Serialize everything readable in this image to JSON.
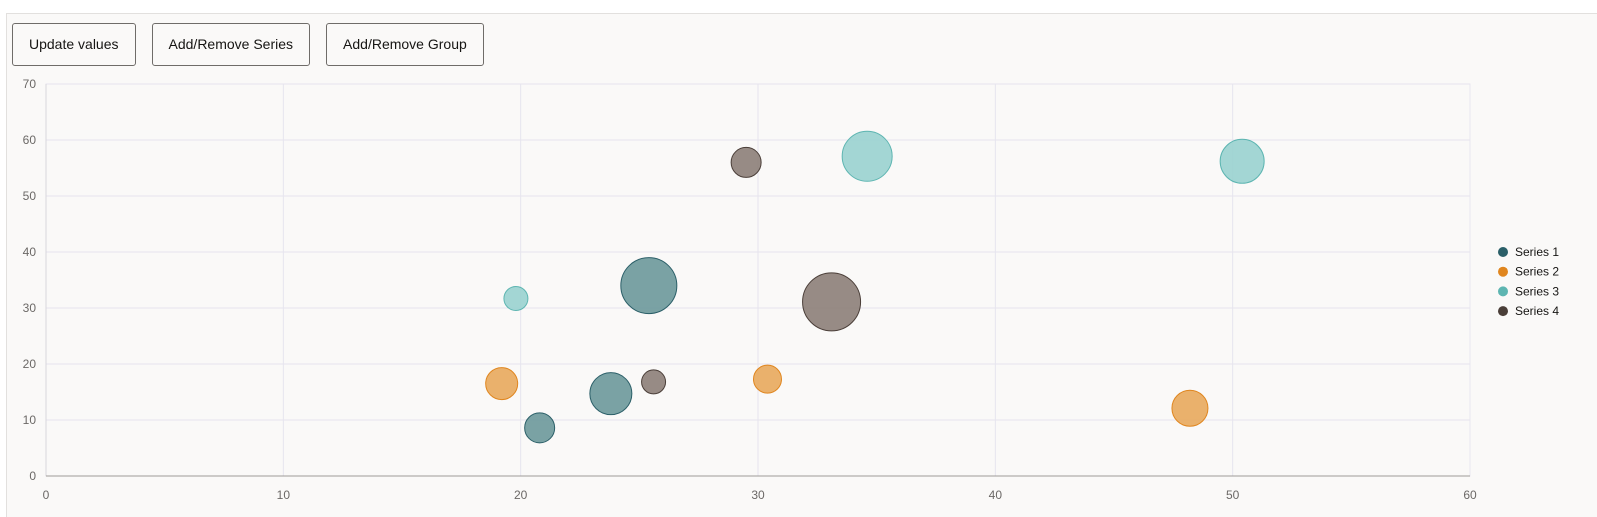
{
  "toolbar": {
    "update_label": "Update values",
    "series_label": "Add/Remove Series",
    "group_label": "Add/Remove Group"
  },
  "chart_data": {
    "type": "scatter",
    "subtype": "bubble",
    "title": "",
    "xlabel": "",
    "ylabel": "",
    "xlim": [
      0,
      60
    ],
    "ylim": [
      0,
      70
    ],
    "x_ticks": [
      "0",
      "10",
      "20",
      "30",
      "40",
      "50",
      "60"
    ],
    "y_ticks": [
      "0",
      "10",
      "20",
      "30",
      "40",
      "50",
      "60",
      "70"
    ],
    "grid": true,
    "legend_position": "right",
    "series": [
      {
        "name": "Series 1",
        "color": "#2b5f68",
        "fill": "#6f9a9c",
        "points": [
          {
            "x": 20.8,
            "y": 8.6,
            "size": 15
          },
          {
            "x": 23.8,
            "y": 14.7,
            "size": 21
          },
          {
            "x": 25.4,
            "y": 34,
            "size": 28
          }
        ]
      },
      {
        "name": "Series 2",
        "color": "#e0861f",
        "fill": "#e8aa60",
        "points": [
          {
            "x": 19.2,
            "y": 16.5,
            "size": 16
          },
          {
            "x": 30.4,
            "y": 17.3,
            "size": 14
          },
          {
            "x": 48.2,
            "y": 12.1,
            "size": 18
          }
        ]
      },
      {
        "name": "Series 3",
        "color": "#5db5b1",
        "fill": "#9bd3d0",
        "points": [
          {
            "x": 19.8,
            "y": 31.7,
            "size": 12
          },
          {
            "x": 34.6,
            "y": 57.1,
            "size": 25
          },
          {
            "x": 50.4,
            "y": 56.2,
            "size": 22
          }
        ]
      },
      {
        "name": "Series 4",
        "color": "#4a3e38",
        "fill": "#8e817b",
        "points": [
          {
            "x": 25.6,
            "y": 16.8,
            "size": 12
          },
          {
            "x": 29.5,
            "y": 56,
            "size": 15
          },
          {
            "x": 33.1,
            "y": 31.1,
            "size": 29
          }
        ]
      }
    ]
  }
}
